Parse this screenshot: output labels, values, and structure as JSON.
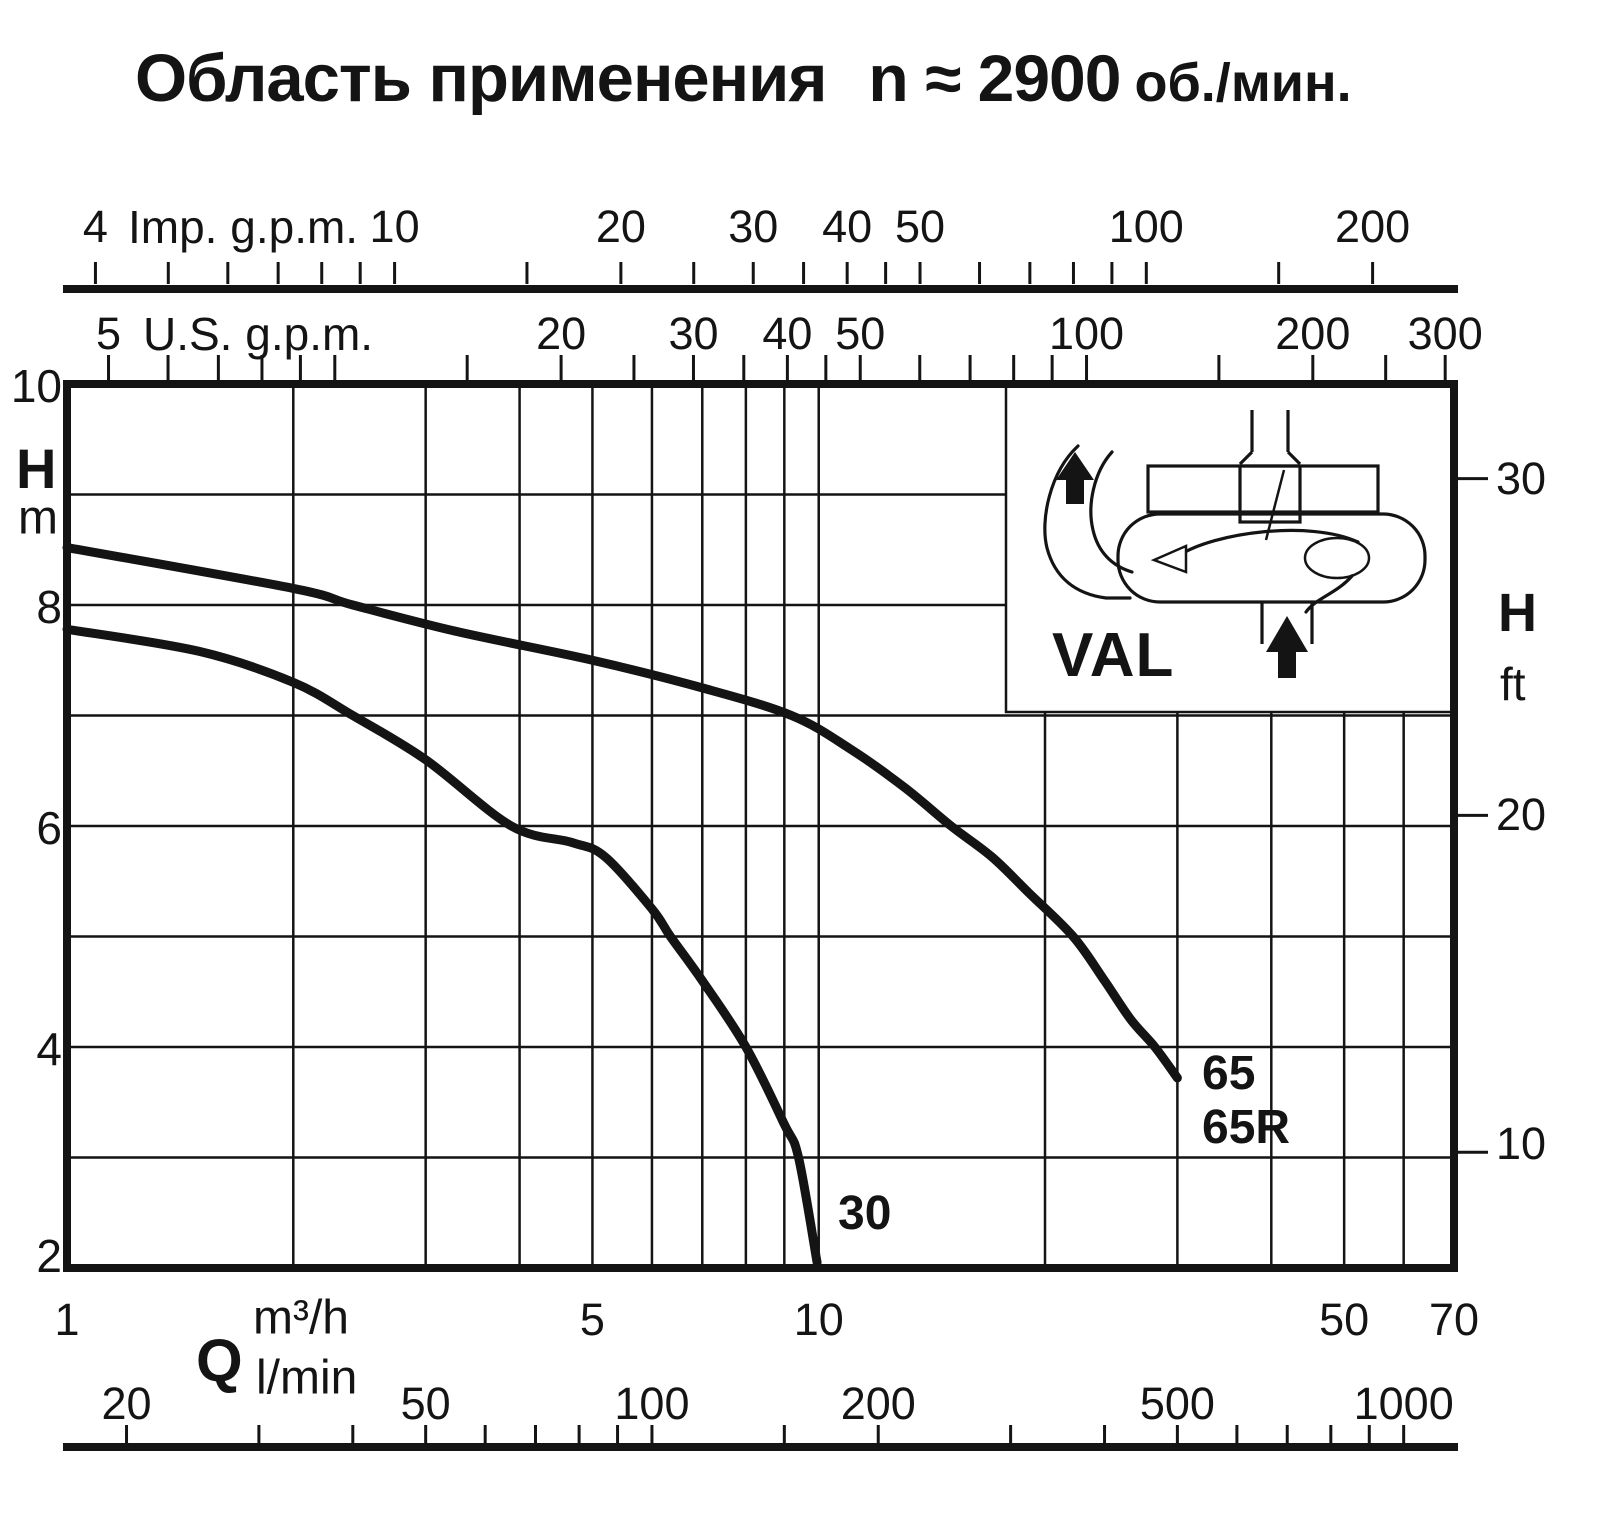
{
  "title": {
    "part1": "Область применения",
    "part2": "n ≈ 2900",
    "part3": "об./мин."
  },
  "axes": {
    "imp_gpm": {
      "name": "Imp. g.p.m.",
      "per_m3h": 3.6662,
      "labeled": [
        4,
        10,
        20,
        30,
        40,
        50,
        100,
        200
      ],
      "ticks": [
        4,
        5,
        6,
        7,
        8,
        9,
        10,
        15,
        20,
        25,
        30,
        35,
        40,
        45,
        50,
        60,
        70,
        80,
        90,
        100,
        150,
        200
      ]
    },
    "us_gpm": {
      "name": "U.S. g.p.m.",
      "per_m3h": 4.4029,
      "labeled": [
        5,
        20,
        30,
        40,
        50,
        100,
        200,
        300
      ],
      "ticks": [
        5,
        6,
        7,
        8,
        9,
        10,
        15,
        20,
        25,
        30,
        35,
        40,
        45,
        50,
        60,
        70,
        80,
        90,
        100,
        150,
        200,
        250,
        300
      ]
    },
    "m3h": {
      "symbol": "Q",
      "unit": "m³/h",
      "labeled": [
        1,
        5,
        10,
        50,
        70
      ],
      "gridlines_q": [
        2,
        3,
        4,
        5,
        6,
        7,
        8,
        9,
        10,
        20,
        30,
        40,
        50,
        60
      ]
    },
    "lmin": {
      "unit": "l/min",
      "per_m3h": 16.6667,
      "labeled": [
        20,
        50,
        100,
        200,
        500,
        1000
      ],
      "ticks": [
        20,
        30,
        40,
        50,
        60,
        70,
        80,
        90,
        100,
        150,
        200,
        300,
        400,
        500,
        600,
        700,
        800,
        900,
        1000
      ]
    },
    "h_m": {
      "symbol": "H",
      "unit": "m",
      "labeled": [
        10,
        8,
        6,
        4,
        2
      ],
      "gridlines": [
        3,
        4,
        5,
        6,
        7,
        8,
        9
      ]
    },
    "h_ft": {
      "symbol": "H",
      "unit": "ft",
      "m_per_ft": 0.3048,
      "labeled": [
        30,
        20,
        10
      ]
    }
  },
  "inset": {
    "label": "VAL"
  },
  "curve_labels": {
    "c30": "30",
    "c65": "65",
    "c65r": "65R"
  },
  "chart_data": {
    "type": "line",
    "title": "Область применения n ≈ 2900 об./мин.",
    "xlabel": "Q (m³/h; also shown as l/min, U.S. g.p.m., Imp. g.p.m.)",
    "ylabel": "H (m; also shown as ft)",
    "x_scale": "log",
    "xlim": [
      1,
      70
    ],
    "ylim": [
      2,
      10
    ],
    "grid": true,
    "series": [
      {
        "name": "30",
        "points": [
          [
            1,
            7.78
          ],
          [
            1.5,
            7.58
          ],
          [
            2,
            7.3
          ],
          [
            2.4,
            7.0
          ],
          [
            3,
            6.6
          ],
          [
            3.9,
            6.0
          ],
          [
            4.7,
            5.85
          ],
          [
            5.2,
            5.72
          ],
          [
            6,
            5.25
          ],
          [
            6.35,
            5.0
          ],
          [
            7,
            4.6
          ],
          [
            8,
            4.0
          ],
          [
            9,
            3.3
          ],
          [
            9.4,
            3.0
          ],
          [
            9.95,
            2.05
          ]
        ]
      },
      {
        "name": "65 / 65R",
        "points": [
          [
            1,
            8.52
          ],
          [
            2,
            8.15
          ],
          [
            2.4,
            8.0
          ],
          [
            3.3,
            7.76
          ],
          [
            5,
            7.5
          ],
          [
            7,
            7.25
          ],
          [
            9.2,
            7.0
          ],
          [
            11,
            6.7
          ],
          [
            13,
            6.35
          ],
          [
            15,
            6.0
          ],
          [
            17,
            5.72
          ],
          [
            19,
            5.4
          ],
          [
            21.8,
            5.0
          ],
          [
            24,
            4.6
          ],
          [
            26,
            4.25
          ],
          [
            28,
            4.0
          ],
          [
            30,
            3.72
          ]
        ]
      }
    ]
  }
}
